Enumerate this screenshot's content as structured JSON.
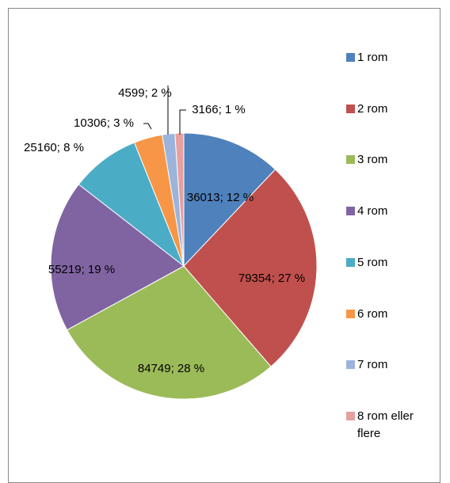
{
  "chart_data": {
    "type": "pie",
    "categories": [
      "1 rom",
      "2 rom",
      "3 rom",
      "4 rom",
      "5 rom",
      "6 rom",
      "7 rom",
      "8 rom eller flere"
    ],
    "values": [
      36013,
      79354,
      84749,
      55219,
      25160,
      10306,
      4599,
      3166
    ],
    "value_labels": [
      "36013; 12 %",
      "79354; 27 %",
      "84749; 28 %",
      "55219; 19 %",
      "25160; 8 %",
      "10306; 3 %",
      "4599; 2 %",
      "3166; 1 %"
    ],
    "colors": [
      "#4f81bd",
      "#c0504d",
      "#9bbb59",
      "#8064a2",
      "#4bacc6",
      "#f79646",
      "#9cb4db",
      "#e6a0a0"
    ],
    "legend": "right"
  }
}
